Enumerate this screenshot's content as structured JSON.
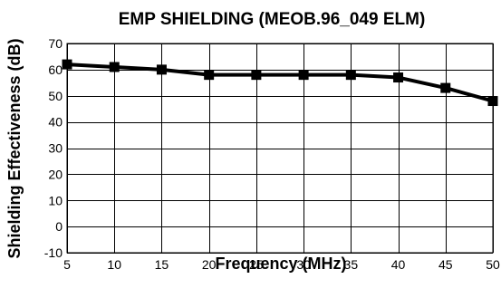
{
  "chart_data": {
    "type": "line",
    "title": "EMP  SHIELDING  (MEOB.96_049 ELM)",
    "xlabel": "Frequency (MHz)",
    "ylabel": "Shielding Effectiveness (dB)",
    "x": [
      5,
      10,
      15,
      20,
      25,
      30,
      35,
      40,
      45,
      50
    ],
    "xlim": [
      5,
      50
    ],
    "ylim": [
      -10,
      70
    ],
    "x_ticks": [
      "5",
      "10",
      "15",
      "20",
      "25",
      "30",
      "35",
      "40",
      "45",
      "50"
    ],
    "y_ticks": [
      "70",
      "60",
      "50",
      "40",
      "30",
      "20",
      "10",
      "0",
      "-10"
    ],
    "grid": true,
    "legend": "none",
    "series": [
      {
        "values": [
          62,
          61,
          60,
          58,
          58,
          58,
          58,
          57,
          53,
          48
        ],
        "color": "#000000",
        "marker": "square"
      }
    ]
  }
}
